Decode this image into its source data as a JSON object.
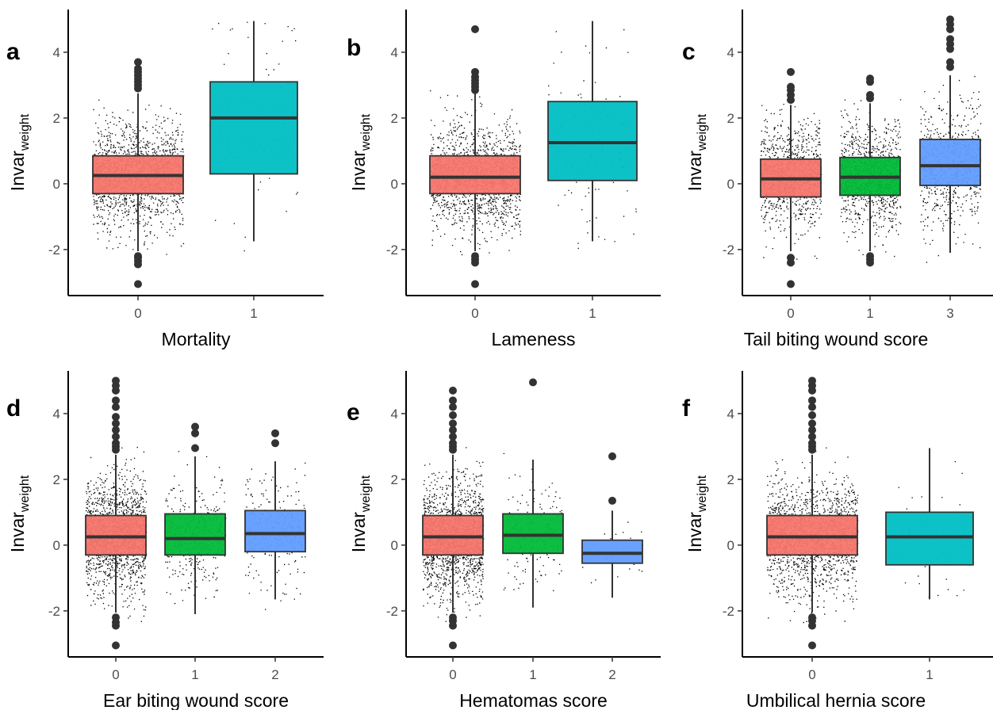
{
  "colors": {
    "0": "#F8766D",
    "1": "#00BA38",
    "2": "#619CFF",
    "3": "#619CFF",
    "binary_1": "#00BFC4",
    "jitter": "#000000",
    "outline": "#333333"
  },
  "chart_data": [
    {
      "type": "box",
      "panel": "a",
      "xlabel": "Mortality",
      "ylabel": "Invar",
      "ylabel_sub": "weight",
      "ylim": [
        -3.4,
        5.3
      ],
      "yticks": [
        -2,
        0,
        2,
        4
      ],
      "categories": [
        "0",
        "1"
      ],
      "boxes": [
        {
          "category": "0",
          "color": "#F8766D",
          "q1": -0.3,
          "median": 0.25,
          "q3": 0.85,
          "whisker_low": -2.05,
          "whisker_high": 2.75,
          "outliers": [
            -3.05,
            -2.45,
            -2.35,
            -2.25,
            -2.2,
            2.9,
            3.0,
            3.1,
            3.2,
            3.3,
            3.4,
            3.5,
            3.7
          ],
          "points": 1400
        },
        {
          "category": "1",
          "color": "#00BFC4",
          "q1": 0.3,
          "median": 2.0,
          "q3": 3.1,
          "whisker_low": -1.75,
          "whisker_high": 4.95,
          "outliers": [],
          "points": 60
        }
      ]
    },
    {
      "type": "box",
      "panel": "b",
      "xlabel": "Lameness",
      "ylabel": "Invar",
      "ylabel_sub": "weight",
      "ylim": [
        -3.4,
        5.3
      ],
      "yticks": [
        -2,
        0,
        2,
        4
      ],
      "categories": [
        "0",
        "1"
      ],
      "boxes": [
        {
          "category": "0",
          "color": "#F8766D",
          "q1": -0.3,
          "median": 0.2,
          "q3": 0.85,
          "whisker_low": -2.05,
          "whisker_high": 2.75,
          "outliers": [
            -3.05,
            -2.4,
            -2.3,
            -2.2,
            2.85,
            2.95,
            3.05,
            3.15,
            3.25,
            3.4,
            4.7
          ],
          "points": 1400
        },
        {
          "category": "1",
          "color": "#00BFC4",
          "q1": 0.1,
          "median": 1.25,
          "q3": 2.5,
          "whisker_low": -1.75,
          "whisker_high": 4.95,
          "outliers": [],
          "points": 70
        }
      ]
    },
    {
      "type": "box",
      "panel": "c",
      "xlabel": "Tail biting wound score",
      "ylabel": "Invar",
      "ylabel_sub": "weight",
      "ylim": [
        -3.4,
        5.3
      ],
      "yticks": [
        -2,
        0,
        2,
        4
      ],
      "categories": [
        "0",
        "1",
        "3"
      ],
      "boxes": [
        {
          "category": "0",
          "color": "#F8766D",
          "q1": -0.4,
          "median": 0.15,
          "q3": 0.75,
          "whisker_low": -2.05,
          "whisker_high": 2.4,
          "outliers": [
            -3.05,
            -2.4,
            -2.25,
            2.55,
            2.7,
            2.85,
            2.95,
            3.4
          ],
          "points": 900
        },
        {
          "category": "1",
          "color": "#00BA38",
          "q1": -0.35,
          "median": 0.2,
          "q3": 0.8,
          "whisker_low": -2.05,
          "whisker_high": 2.45,
          "outliers": [
            -2.4,
            -2.3,
            -2.2,
            2.6,
            2.7,
            3.1,
            3.2
          ],
          "points": 900
        },
        {
          "category": "3",
          "color": "#619CFF",
          "q1": -0.05,
          "median": 0.55,
          "q3": 1.35,
          "whisker_low": -2.1,
          "whisker_high": 3.3,
          "outliers": [
            3.55,
            3.7,
            4.1,
            4.25,
            4.4,
            4.7,
            4.85,
            5.0
          ],
          "points": 500
        }
      ]
    },
    {
      "type": "box",
      "panel": "d",
      "xlabel": "Ear biting wound score",
      "ylabel": "Invar",
      "ylabel_sub": "weight",
      "ylim": [
        -3.4,
        5.3
      ],
      "yticks": [
        -2,
        0,
        2,
        4
      ],
      "categories": [
        "0",
        "1",
        "2"
      ],
      "boxes": [
        {
          "category": "0",
          "color": "#F8766D",
          "q1": -0.3,
          "median": 0.25,
          "q3": 0.9,
          "whisker_low": -2.05,
          "whisker_high": 2.75,
          "outliers": [
            -3.05,
            -2.45,
            -2.35,
            -2.2,
            2.9,
            3.0,
            3.1,
            3.3,
            3.5,
            3.7,
            3.9,
            4.2,
            4.4,
            4.7,
            4.85,
            5.0
          ],
          "points": 1500
        },
        {
          "category": "1",
          "color": "#00BA38",
          "q1": -0.3,
          "median": 0.2,
          "q3": 0.95,
          "whisker_low": -2.1,
          "whisker_high": 2.7,
          "outliers": [
            2.95,
            3.4,
            3.6
          ],
          "points": 300
        },
        {
          "category": "2",
          "color": "#619CFF",
          "q1": -0.2,
          "median": 0.35,
          "q3": 1.05,
          "whisker_low": -1.65,
          "whisker_high": 2.55,
          "outliers": [
            3.1,
            3.4
          ],
          "points": 200
        }
      ]
    },
    {
      "type": "box",
      "panel": "e",
      "xlabel": "Hematomas score",
      "ylabel": "Invar",
      "ylabel_sub": "weight",
      "ylim": [
        -3.4,
        5.3
      ],
      "yticks": [
        -2,
        0,
        2,
        4
      ],
      "categories": [
        "0",
        "1",
        "2"
      ],
      "boxes": [
        {
          "category": "0",
          "color": "#F8766D",
          "q1": -0.3,
          "median": 0.25,
          "q3": 0.9,
          "whisker_low": -2.05,
          "whisker_high": 2.75,
          "outliers": [
            -3.05,
            -2.45,
            -2.3,
            -2.2,
            2.9,
            3.0,
            3.1,
            3.3,
            3.5,
            3.7,
            3.95,
            4.2,
            4.4,
            4.7
          ],
          "points": 1500
        },
        {
          "category": "1",
          "color": "#00BA38",
          "q1": -0.25,
          "median": 0.3,
          "q3": 0.95,
          "whisker_low": -1.9,
          "whisker_high": 2.6,
          "outliers": [
            4.95
          ],
          "points": 150
        },
        {
          "category": "2",
          "color": "#619CFF",
          "q1": -0.55,
          "median": -0.25,
          "q3": 0.15,
          "whisker_low": -1.6,
          "whisker_high": 1.05,
          "outliers": [
            1.35,
            2.7
          ],
          "points": 25
        }
      ]
    },
    {
      "type": "box",
      "panel": "f",
      "xlabel": "Umbilical hernia score",
      "ylabel": "Invar",
      "ylabel_sub": "weight",
      "ylim": [
        -3.4,
        5.3
      ],
      "yticks": [
        -2,
        0,
        2,
        4
      ],
      "categories": [
        "0",
        "1"
      ],
      "boxes": [
        {
          "category": "0",
          "color": "#F8766D",
          "q1": -0.3,
          "median": 0.25,
          "q3": 0.9,
          "whisker_low": -2.05,
          "whisker_high": 2.75,
          "outliers": [
            -3.05,
            -2.45,
            -2.3,
            -2.2,
            2.9,
            3.0,
            3.1,
            3.3,
            3.5,
            3.7,
            3.95,
            4.2,
            4.4,
            4.7,
            4.85,
            5.0
          ],
          "points": 1500
        },
        {
          "category": "1",
          "color": "#00BFC4",
          "q1": -0.6,
          "median": 0.25,
          "q3": 1.0,
          "whisker_low": -1.65,
          "whisker_high": 2.95,
          "outliers": [],
          "points": 40
        }
      ]
    }
  ]
}
